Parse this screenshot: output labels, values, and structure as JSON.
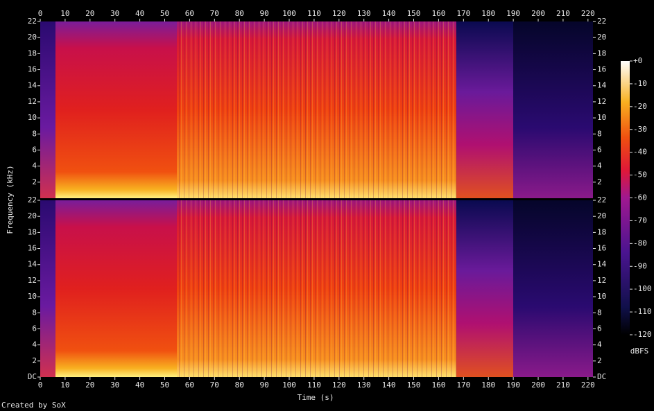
{
  "chart_data": {
    "type": "spectrogram",
    "x_label": "Time (s)",
    "y_label": "Frequency (kHz)",
    "xlim": [
      0,
      222
    ],
    "xticks": [
      0,
      10,
      20,
      30,
      40,
      50,
      60,
      70,
      80,
      90,
      100,
      110,
      120,
      130,
      140,
      150,
      160,
      170,
      180,
      190,
      200,
      210,
      220
    ],
    "ylim": [
      0,
      22
    ],
    "yticks": [
      {
        "value": 0,
        "label": "DC"
      },
      2,
      4,
      6,
      8,
      10,
      12,
      14,
      16,
      18,
      20,
      22
    ],
    "colorbar": {
      "label": "dBFS",
      "lim": [
        -120,
        0
      ],
      "ticks": [
        {
          "value": 0,
          "label": "+0"
        },
        -10,
        -20,
        -30,
        -40,
        -50,
        -60,
        -70,
        -80,
        -90,
        -100,
        -110,
        -120
      ]
    },
    "footer": "Created by SoX"
  }
}
